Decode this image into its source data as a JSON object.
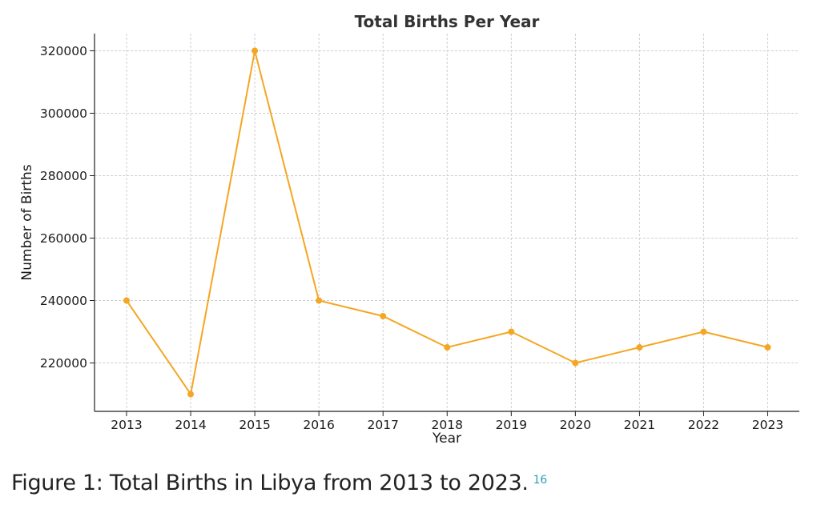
{
  "chart_data": {
    "type": "line",
    "title": "Total Births Per Year",
    "xlabel": "Year",
    "ylabel": "Number of Births",
    "x": [
      "2013",
      "2014",
      "2015",
      "2016",
      "2017",
      "2018",
      "2019",
      "2020",
      "2021",
      "2022",
      "2023"
    ],
    "series": [
      {
        "values": [
          240000,
          210000,
          320000,
          240000,
          235000,
          225000,
          230000,
          220000,
          225000,
          230000,
          225000
        ]
      }
    ],
    "yticks": [
      "220000",
      "240000",
      "260000",
      "280000",
      "300000",
      "320000"
    ],
    "ylim": [
      204500,
      325500
    ],
    "grid": true,
    "line_color": "#f5a623"
  },
  "caption": {
    "text": "Figure  1: Total Births in Libya from 2013 to 2023.",
    "ref": "16"
  }
}
